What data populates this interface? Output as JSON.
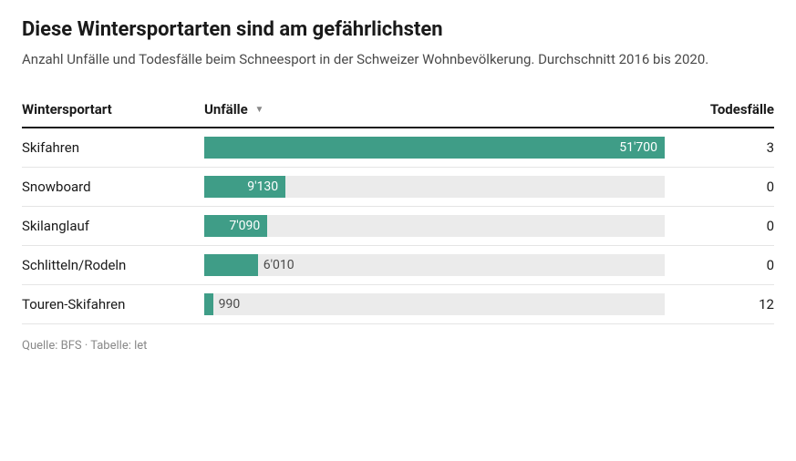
{
  "title": "Diese Wintersportarten sind am gefährlichsten",
  "subtitle": "Anzahl Unfälle und Todesfälle beim Schneesport in der Schweizer Wohnbevölkerung. Durchschnitt 2016 bis 2020.",
  "columns": {
    "sport": "Wintersportart",
    "accidents": "Unfälle",
    "deaths": "Todesfälle"
  },
  "sort_indicator": "▼",
  "bar": {
    "track_color": "#ebebeb",
    "fill_color": "#3f9d87",
    "label_inside_color": "#ffffff",
    "label_outside_color": "#4a4a4a",
    "max_value": 51700,
    "label_inside_threshold": 7000
  },
  "rows": [
    {
      "sport": "Skifahren",
      "accidents": 51700,
      "accidents_label": "51'700",
      "deaths": "3"
    },
    {
      "sport": "Snowboard",
      "accidents": 9130,
      "accidents_label": "9'130",
      "deaths": "0"
    },
    {
      "sport": "Skilanglauf",
      "accidents": 7090,
      "accidents_label": "7'090",
      "deaths": "0"
    },
    {
      "sport": "Schlitteln/Rodeln",
      "accidents": 6010,
      "accidents_label": "6'010",
      "deaths": "0"
    },
    {
      "sport": "Touren-Skifahren",
      "accidents": 990,
      "accidents_label": "990",
      "deaths": "12"
    }
  ],
  "source": "Quelle: BFS · Tabelle: let",
  "style": {
    "title_fontsize": 22,
    "subtitle_fontsize": 15,
    "row_fontsize": 15,
    "source_fontsize": 13,
    "text_color": "#1a1a1a",
    "sub_text_color": "#4a4a4a",
    "source_color": "#888888",
    "divider_color": "#e5e5e5",
    "header_border_color": "#1a1a1a",
    "background": "#ffffff"
  }
}
